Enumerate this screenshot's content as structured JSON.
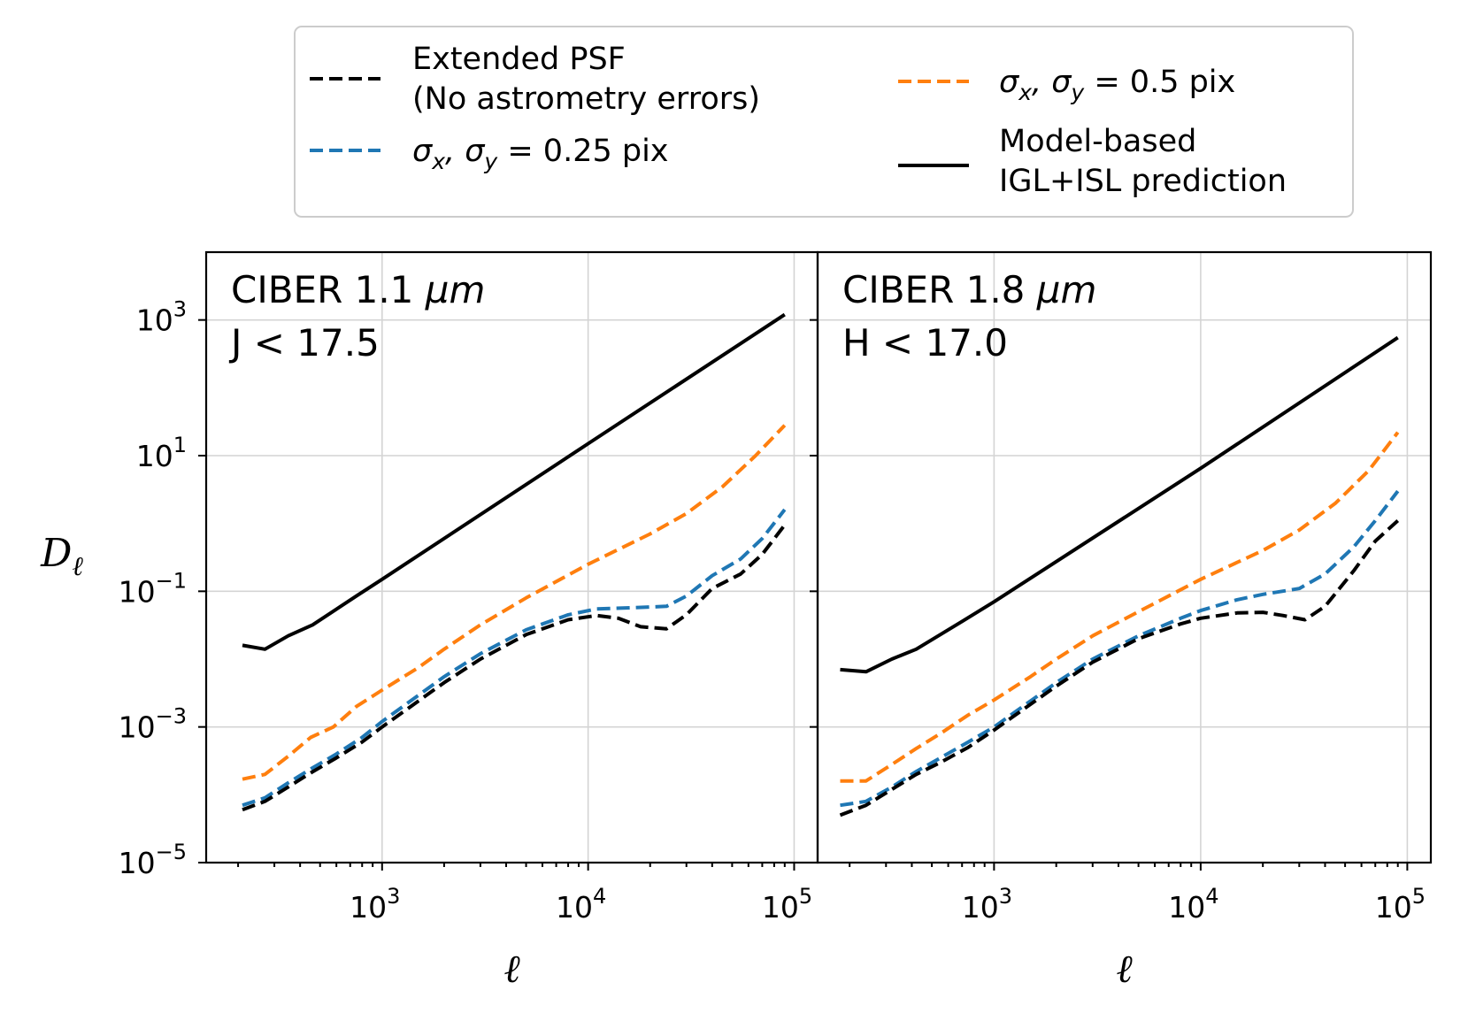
{
  "chart_data": [
    {
      "type": "line",
      "panel": "left",
      "title_line1": "CIBER 1.1 ",
      "title_unit": "μm",
      "title_line2": "J < 17.5",
      "xlabel": "ℓ",
      "ylabel": "D",
      "ylabel_sub": "ℓ",
      "xscale": "log",
      "yscale": "log",
      "xlim": [
        140,
        130000
      ],
      "ylim": [
        1e-05,
        10000
      ],
      "x_ticks": [
        {
          "base": "10",
          "exp": "3",
          "value": 1000
        },
        {
          "base": "10",
          "exp": "4",
          "value": 10000
        },
        {
          "base": "10",
          "exp": "5",
          "value": 100000
        }
      ],
      "y_ticks": [
        {
          "base": "10",
          "exp": "3",
          "value": 1000
        },
        {
          "base": "10",
          "exp": "1",
          "value": 10
        },
        {
          "base": "10",
          "exp": "−1",
          "value": 0.1
        },
        {
          "base": "10",
          "exp": "−3",
          "value": 0.001
        },
        {
          "base": "10",
          "exp": "−5",
          "value": 1e-05
        }
      ],
      "series": [
        {
          "name": "Model-based IGL+ISL prediction",
          "color": "#000000",
          "style": "solid",
          "x": [
            210,
            270,
            350,
            460,
            750,
            1000,
            10000,
            90000
          ],
          "y": [
            0.016,
            0.014,
            0.022,
            0.032,
            0.085,
            0.15,
            15,
            1200
          ]
        },
        {
          "name": "σx, σy = 0.5 pix",
          "color": "#ff7f0e",
          "style": "dashed",
          "x": [
            210,
            270,
            350,
            450,
            580,
            750,
            1000,
            1500,
            2000,
            3000,
            5000,
            10000,
            20000,
            30000,
            45000,
            65000,
            90000
          ],
          "y": [
            0.00017,
            0.0002,
            0.00037,
            0.0007,
            0.001,
            0.002,
            0.0035,
            0.0075,
            0.014,
            0.032,
            0.08,
            0.25,
            0.7,
            1.4,
            3.5,
            10,
            28
          ]
        },
        {
          "name": "σx, σy = 0.25 pix",
          "color": "#1f77b4",
          "style": "dashed",
          "x": [
            210,
            270,
            350,
            450,
            600,
            800,
            1000,
            2000,
            3000,
            5000,
            8000,
            11000,
            16000,
            24000,
            30000,
            40000,
            55000,
            70000,
            90000
          ],
          "y": [
            7e-05,
            9e-05,
            0.00015,
            0.00024,
            0.0004,
            0.0007,
            0.0012,
            0.0055,
            0.012,
            0.027,
            0.045,
            0.055,
            0.057,
            0.06,
            0.085,
            0.17,
            0.3,
            0.6,
            1.6
          ]
        },
        {
          "name": "Extended PSF (No astrometry errors)",
          "color": "#000000",
          "style": "dashed",
          "x": [
            210,
            270,
            350,
            450,
            600,
            800,
            1000,
            2000,
            3000,
            5000,
            8000,
            11000,
            14000,
            18000,
            24000,
            30000,
            40000,
            55000,
            70000,
            90000
          ],
          "y": [
            6e-05,
            8e-05,
            0.00013,
            0.00021,
            0.00035,
            0.0006,
            0.001,
            0.0045,
            0.01,
            0.023,
            0.038,
            0.044,
            0.04,
            0.03,
            0.028,
            0.045,
            0.11,
            0.18,
            0.35,
            0.95
          ]
        }
      ]
    },
    {
      "type": "line",
      "panel": "right",
      "title_line1": "CIBER 1.8 ",
      "title_unit": "μm",
      "title_line2": "H < 17.0",
      "xlabel": "ℓ",
      "xscale": "log",
      "yscale": "log",
      "xlim": [
        140,
        130000
      ],
      "ylim": [
        1e-05,
        10000
      ],
      "x_ticks": [
        {
          "base": "10",
          "exp": "3",
          "value": 1000
        },
        {
          "base": "10",
          "exp": "4",
          "value": 10000
        },
        {
          "base": "10",
          "exp": "5",
          "value": 100000
        }
      ],
      "series": [
        {
          "name": "Model-based IGL+ISL prediction",
          "color": "#000000",
          "style": "solid",
          "x": [
            180,
            240,
            320,
            420,
            700,
            1000,
            10000,
            90000
          ],
          "y": [
            0.007,
            0.0065,
            0.01,
            0.014,
            0.036,
            0.07,
            6.5,
            550
          ]
        },
        {
          "name": "σx, σy = 0.5 pix",
          "color": "#ff7f0e",
          "style": "dashed",
          "x": [
            180,
            240,
            320,
            420,
            550,
            750,
            1000,
            1500,
            2000,
            3000,
            5000,
            10000,
            20000,
            30000,
            45000,
            65000,
            90000
          ],
          "y": [
            0.00016,
            0.00016,
            0.00028,
            0.00048,
            0.0008,
            0.0015,
            0.0025,
            0.0055,
            0.01,
            0.022,
            0.05,
            0.15,
            0.4,
            0.8,
            2,
            6,
            22
          ]
        },
        {
          "name": "σx, σy = 0.25 pix",
          "color": "#1f77b4",
          "style": "dashed",
          "x": [
            180,
            240,
            320,
            420,
            550,
            750,
            1000,
            2000,
            3000,
            5000,
            8000,
            10000,
            15000,
            20000,
            30000,
            40000,
            55000,
            70000,
            90000
          ],
          "y": [
            7e-05,
            8e-05,
            0.00013,
            0.00022,
            0.00035,
            0.0006,
            0.001,
            0.0045,
            0.01,
            0.022,
            0.04,
            0.052,
            0.075,
            0.09,
            0.11,
            0.18,
            0.45,
            1.1,
            3
          ]
        },
        {
          "name": "Extended PSF (No astrometry errors)",
          "color": "#000000",
          "style": "dashed",
          "x": [
            180,
            240,
            320,
            420,
            550,
            750,
            1000,
            2000,
            3000,
            5000,
            8000,
            10000,
            15000,
            20000,
            25000,
            32000,
            40000,
            55000,
            70000,
            90000
          ],
          "y": [
            5e-05,
            7e-05,
            0.00012,
            0.0002,
            0.0003,
            0.0005,
            0.0009,
            0.004,
            0.009,
            0.02,
            0.033,
            0.04,
            0.048,
            0.049,
            0.044,
            0.038,
            0.06,
            0.2,
            0.55,
            1.1
          ]
        }
      ]
    }
  ],
  "legend": {
    "items": [
      {
        "key": "ext",
        "label_line1": "Extended PSF",
        "label_line2": "(No astrometry errors)",
        "color": "#000000",
        "style": "dashed"
      },
      {
        "key": "s05",
        "label_main": "σ",
        "sub1": "x",
        "sep": ", σ",
        "sub2": "y",
        "rest": " = 0.5 pix",
        "color": "#ff7f0e",
        "style": "dashed"
      },
      {
        "key": "s025",
        "label_main": "σ",
        "sub1": "x",
        "sep": ", σ",
        "sub2": "y",
        "rest": " = 0.25 pix",
        "color": "#1f77b4",
        "style": "dashed"
      },
      {
        "key": "model",
        "label_line1": "Model-based",
        "label_line2": "IGL+ISL prediction",
        "color": "#000000",
        "style": "solid"
      }
    ]
  }
}
